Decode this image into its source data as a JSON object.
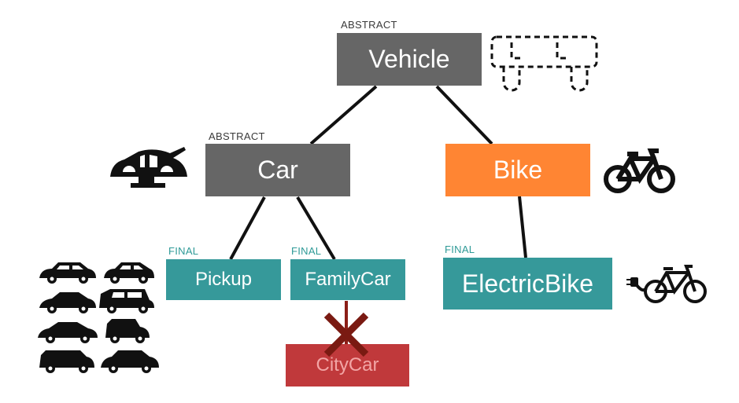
{
  "colors": {
    "abstract": "#666666",
    "concrete": "#ff8533",
    "final": "#36999a",
    "blocked": "#c0393b",
    "blocked_text": "#f2a5a5",
    "line": "#111111",
    "cross": "#7a1a12",
    "tag_final": "#2e9a97"
  },
  "nodes": {
    "vehicle": {
      "label": "Vehicle",
      "tag": "ABSTRACT"
    },
    "car": {
      "label": "Car",
      "tag": "ABSTRACT"
    },
    "bike": {
      "label": "Bike"
    },
    "pickup": {
      "label": "Pickup",
      "tag": "FINAL"
    },
    "familycar": {
      "label": "FamilyCar",
      "tag": "FINAL"
    },
    "electricbike": {
      "label": "ElectricBike",
      "tag": "FINAL"
    },
    "citycar": {
      "label": "CityCar"
    }
  },
  "icons": [
    "dashed-vehicle-outline-icon",
    "car-body-frame-icon",
    "bicycle-icon",
    "electric-bicycle-icon",
    "car-collection-icon"
  ]
}
